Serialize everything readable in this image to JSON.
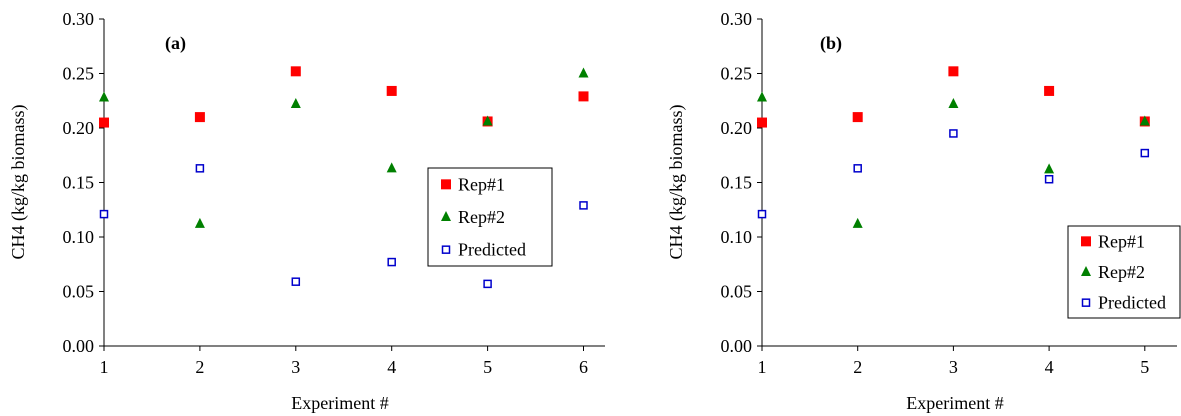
{
  "chart_data": [
    {
      "type": "scatter",
      "panel_label": "(a)",
      "xlabel": "Experiment #",
      "ylabel": "CH4 (kg/kg biomass)",
      "x_ticks": [
        1,
        2,
        3,
        4,
        5,
        6
      ],
      "y_ticks": [
        "0.00",
        "0.05",
        "0.10",
        "0.15",
        "0.20",
        "0.25",
        "0.30"
      ],
      "xlim": [
        1,
        6.2
      ],
      "ylim": [
        0,
        0.3
      ],
      "legend_position": "right",
      "series": [
        {
          "name": "Rep#1",
          "color": "#ff0000",
          "marker": "filled-square",
          "points": [
            [
              1,
              0.205
            ],
            [
              2,
              0.21
            ],
            [
              3,
              0.252
            ],
            [
              4,
              0.234
            ],
            [
              5,
              0.206
            ],
            [
              6,
              0.229
            ]
          ]
        },
        {
          "name": "Rep#2",
          "color": "#008000",
          "marker": "filled-triangle",
          "points": [
            [
              1,
              0.228
            ],
            [
              2,
              0.112
            ],
            [
              3,
              0.222
            ],
            [
              4,
              0.163
            ],
            [
              5,
              0.206
            ],
            [
              6,
              0.25
            ]
          ]
        },
        {
          "name": "Predicted",
          "color": "#0000cc",
          "marker": "open-square",
          "points": [
            [
              1,
              0.121
            ],
            [
              2,
              0.163
            ],
            [
              3,
              0.059
            ],
            [
              4,
              0.077
            ],
            [
              5,
              0.057
            ],
            [
              6,
              0.129
            ]
          ]
        }
      ]
    },
    {
      "type": "scatter",
      "panel_label": "(b)",
      "xlabel": "Experiment #",
      "ylabel": "CH4 (kg/kg biomass)",
      "x_ticks": [
        1,
        2,
        3,
        4,
        5
      ],
      "y_ticks": [
        "0.00",
        "0.05",
        "0.10",
        "0.15",
        "0.20",
        "0.25",
        "0.30"
      ],
      "xlim": [
        1,
        5.4
      ],
      "ylim": [
        0,
        0.3
      ],
      "legend_position": "bottom-right",
      "series": [
        {
          "name": "Rep#1",
          "color": "#ff0000",
          "marker": "filled-square",
          "points": [
            [
              1,
              0.205
            ],
            [
              2,
              0.21
            ],
            [
              3,
              0.252
            ],
            [
              4,
              0.234
            ],
            [
              5,
              0.206
            ]
          ]
        },
        {
          "name": "Rep#2",
          "color": "#008000",
          "marker": "filled-triangle",
          "points": [
            [
              1,
              0.228
            ],
            [
              2,
              0.112
            ],
            [
              3,
              0.222
            ],
            [
              4,
              0.162
            ],
            [
              5,
              0.206
            ]
          ]
        },
        {
          "name": "Predicted",
          "color": "#0000cc",
          "marker": "open-square",
          "points": [
            [
              1,
              0.121
            ],
            [
              2,
              0.163
            ],
            [
              3,
              0.195
            ],
            [
              4,
              0.153
            ],
            [
              5,
              0.177
            ]
          ]
        }
      ]
    }
  ]
}
